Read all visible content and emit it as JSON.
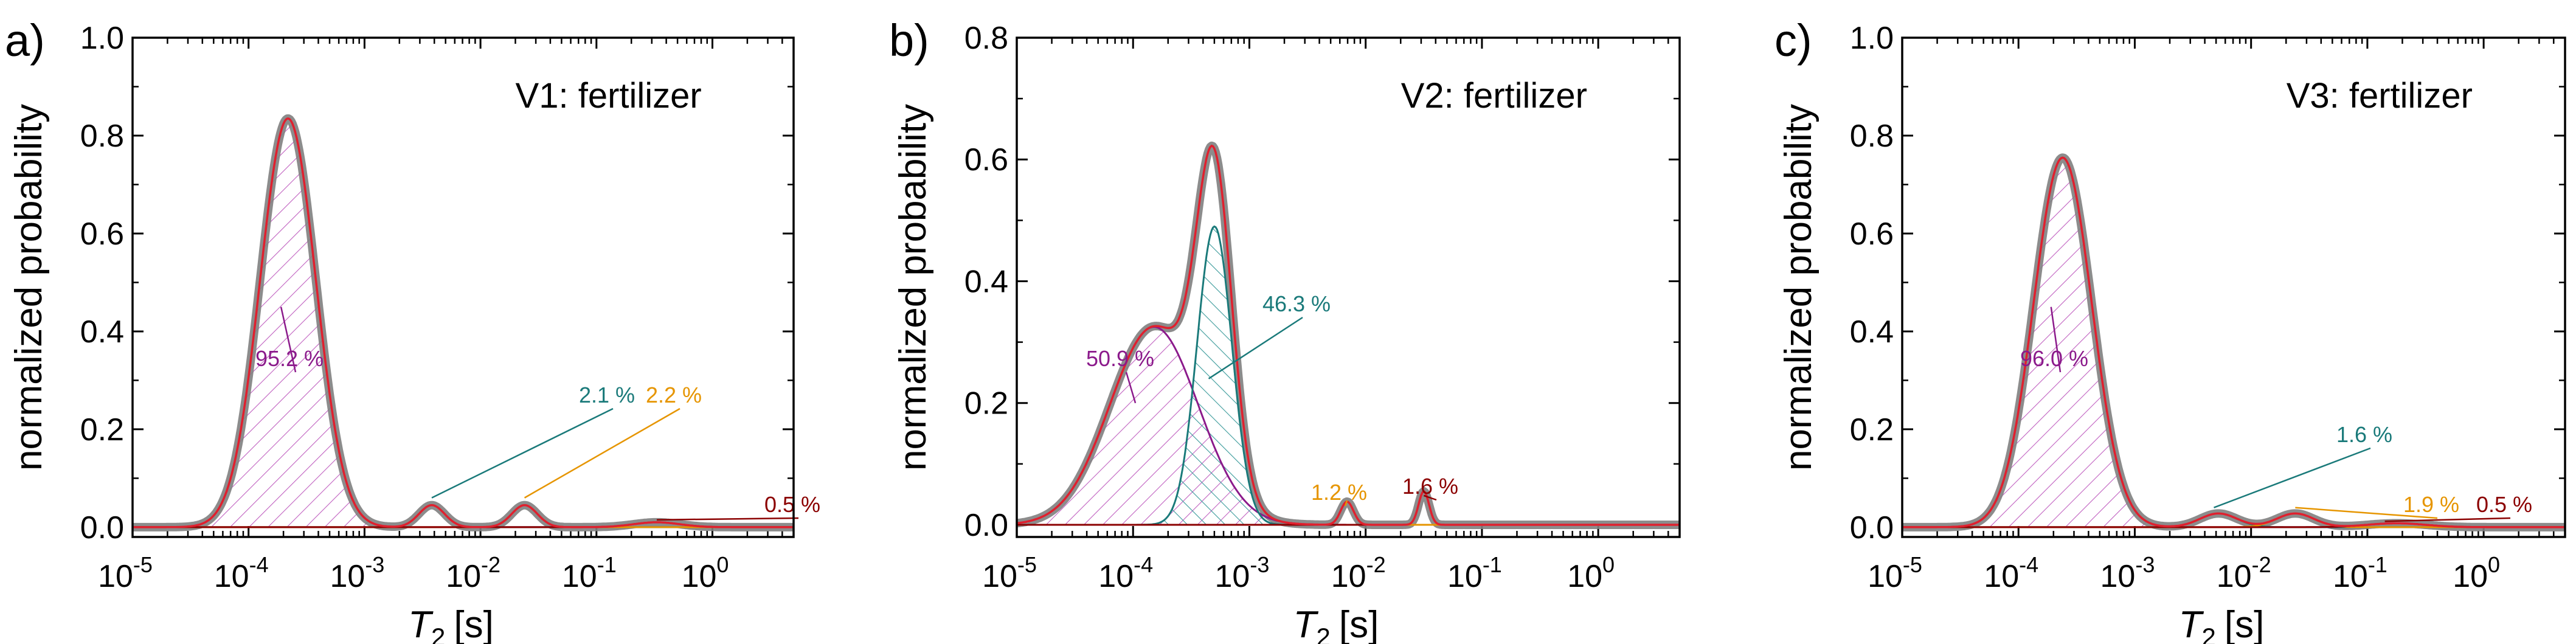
{
  "panels": [
    {
      "letter": "a)",
      "title": "V1: fertilizer",
      "ylabel": "normalized probability",
      "xlabel_main": "T",
      "xlabel_sub": "2",
      "xlabel_unit": "[s]",
      "ylim": [
        -0.02,
        1.0
      ],
      "yticks": [
        "0.0",
        "0.2",
        "0.4",
        "0.6",
        "0.8",
        "1.0"
      ],
      "xlim_log10": [
        -5,
        0.7
      ],
      "xticks": [
        {
          "base": "10",
          "exp": "-5"
        },
        {
          "base": "10",
          "exp": "-4"
        },
        {
          "base": "10",
          "exp": "-3"
        },
        {
          "base": "10",
          "exp": "-2"
        },
        {
          "base": "10",
          "exp": "-1"
        },
        {
          "base": "10",
          "exp": "0"
        }
      ],
      "peaks": [
        {
          "center_log10": -3.66,
          "sigma": 0.24,
          "amp": 0.835,
          "label": "95.2 %",
          "color": "#8b1a8b",
          "hatch": "diag"
        },
        {
          "center_log10": -2.42,
          "sigma": 0.11,
          "amp": 0.045,
          "label": "2.1 %",
          "color": "#1a7a7a"
        },
        {
          "center_log10": -1.62,
          "sigma": 0.11,
          "amp": 0.045,
          "label": "2.2 %",
          "color": "#e69500"
        },
        {
          "center_log10": -0.48,
          "sigma": 0.2,
          "amp": 0.01,
          "label": "0.5 %",
          "color": "#8b0000"
        }
      ],
      "annotations_text": [
        "95.2 %",
        "2.1 %",
        "2.2 %",
        "0.5 %"
      ]
    },
    {
      "letter": "b)",
      "title": "V2: fertilizer",
      "ylabel": "normalized probability",
      "xlabel_main": "T",
      "xlabel_sub": "2",
      "xlabel_unit": "[s]",
      "ylim": [
        -0.02,
        0.8
      ],
      "yticks": [
        "0.0",
        "0.2",
        "0.4",
        "0.6",
        "0.8"
      ],
      "xlim_log10": [
        -5,
        0.7
      ],
      "xticks": [
        {
          "base": "10",
          "exp": "-5"
        },
        {
          "base": "10",
          "exp": "-4"
        },
        {
          "base": "10",
          "exp": "-3"
        },
        {
          "base": "10",
          "exp": "-2"
        },
        {
          "base": "10",
          "exp": "-1"
        },
        {
          "base": "10",
          "exp": "0"
        }
      ],
      "peaks": [
        {
          "center_log10": -3.82,
          "sigma": 0.38,
          "amp": 0.325,
          "label": "50.9 %",
          "color": "#8b1a8b",
          "hatch": "diag"
        },
        {
          "center_log10": -3.3,
          "sigma": 0.15,
          "amp": 0.49,
          "label": "46.3 %",
          "color": "#1a7a7a",
          "hatch": "cross"
        },
        {
          "center_log10": -2.16,
          "sigma": 0.055,
          "amp": 0.038,
          "label": "1.2 %",
          "color": "#e69500"
        },
        {
          "center_log10": -1.5,
          "sigma": 0.045,
          "amp": 0.055,
          "label": "1.6 %",
          "color": "#8b0000"
        }
      ],
      "annotations_text": [
        "50.9 %",
        "46.3 %",
        "1.2 %",
        "1.6 %"
      ]
    },
    {
      "letter": "c)",
      "title": "V3: fertilizer",
      "ylabel": "normalized probability",
      "xlabel_main": "T",
      "xlabel_sub": "2",
      "xlabel_unit": "[s]",
      "ylim": [
        -0.02,
        1.0
      ],
      "yticks": [
        "0.0",
        "0.2",
        "0.4",
        "0.6",
        "0.8",
        "1.0"
      ],
      "xlim_log10": [
        -5,
        0.7
      ],
      "xticks": [
        {
          "base": "10",
          "exp": "-5"
        },
        {
          "base": "10",
          "exp": "-4"
        },
        {
          "base": "10",
          "exp": "-3"
        },
        {
          "base": "10",
          "exp": "-2"
        },
        {
          "base": "10",
          "exp": "-1"
        },
        {
          "base": "10",
          "exp": "0"
        }
      ],
      "peaks": [
        {
          "center_log10": -3.62,
          "sigma": 0.25,
          "amp": 0.755,
          "label": "96.0 %",
          "color": "#8b1a8b",
          "hatch": "diag"
        },
        {
          "center_log10": -2.28,
          "sigma": 0.16,
          "amp": 0.028,
          "label": "1.6 %",
          "color": "#1a7a7a"
        },
        {
          "center_log10": -1.62,
          "sigma": 0.16,
          "amp": 0.028,
          "label": "1.9 %",
          "color": "#e69500"
        },
        {
          "center_log10": -0.75,
          "sigma": 0.25,
          "amp": 0.008,
          "label": "0.5 %",
          "color": "#8b0000"
        }
      ],
      "annotations_text": [
        "96.0 %",
        "1.6 %",
        "1.9 %",
        "0.5 %"
      ]
    }
  ],
  "chart_data": [
    {
      "type": "line",
      "title": "V1: fertilizer",
      "xlabel": "T2 [s]",
      "ylabel": "normalized probability",
      "x_scale": "log",
      "xlim": [
        1e-05,
        5
      ],
      "ylim": [
        0.0,
        1.0
      ],
      "series": [
        {
          "name": "95.2 %",
          "peak_T2_s": 0.00022,
          "peak_value": 0.835
        },
        {
          "name": "2.1 %",
          "peak_T2_s": 0.0038,
          "peak_value": 0.045
        },
        {
          "name": "2.2 %",
          "peak_T2_s": 0.024,
          "peak_value": 0.045
        },
        {
          "name": "0.5 %",
          "peak_T2_s": 0.33,
          "peak_value": 0.01
        }
      ]
    },
    {
      "type": "line",
      "title": "V2: fertilizer",
      "xlabel": "T2 [s]",
      "ylabel": "normalized probability",
      "x_scale": "log",
      "xlim": [
        1e-05,
        5
      ],
      "ylim": [
        0.0,
        0.8
      ],
      "series": [
        {
          "name": "50.9 %",
          "peak_T2_s": 0.00015,
          "peak_value": 0.325
        },
        {
          "name": "46.3 %",
          "peak_T2_s": 0.0005,
          "peak_value": 0.49
        },
        {
          "name": "1.2 %",
          "peak_T2_s": 0.0069,
          "peak_value": 0.038
        },
        {
          "name": "1.6 %",
          "peak_T2_s": 0.032,
          "peak_value": 0.055
        }
      ]
    },
    {
      "type": "line",
      "title": "V3: fertilizer",
      "xlabel": "T2 [s]",
      "ylabel": "normalized probability",
      "x_scale": "log",
      "xlim": [
        1e-05,
        5
      ],
      "ylim": [
        0.0,
        1.0
      ],
      "series": [
        {
          "name": "96.0 %",
          "peak_T2_s": 0.00024,
          "peak_value": 0.755
        },
        {
          "name": "1.6 %",
          "peak_T2_s": 0.0052,
          "peak_value": 0.028
        },
        {
          "name": "1.9 %",
          "peak_T2_s": 0.024,
          "peak_value": 0.028
        },
        {
          "name": "0.5 %",
          "peak_T2_s": 0.18,
          "peak_value": 0.008
        }
      ]
    }
  ]
}
